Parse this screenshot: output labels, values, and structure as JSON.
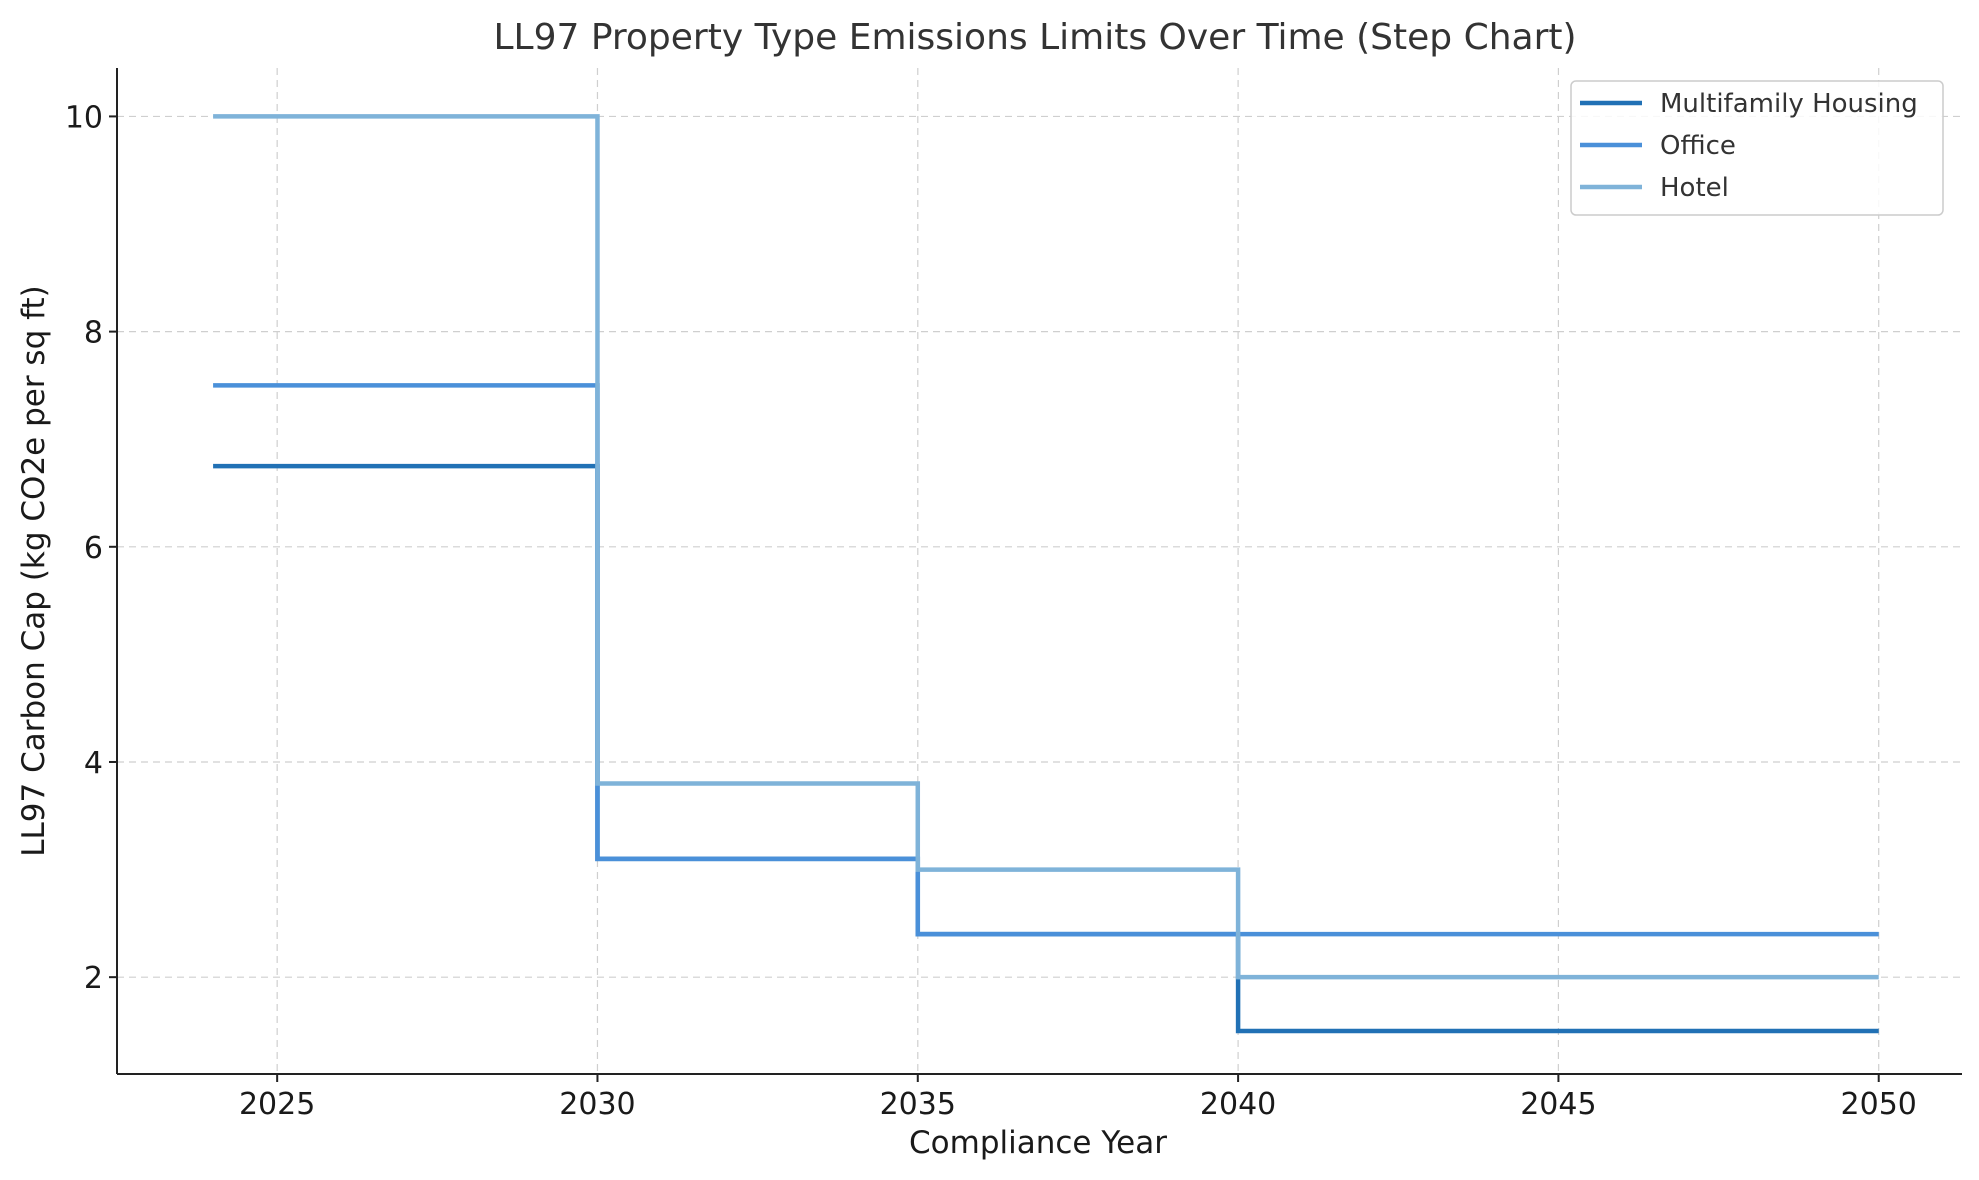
{
  "chart_data": {
    "type": "line",
    "subtype": "step",
    "title": "LL97 Property Type Emissions Limits Over Time (Step Chart)",
    "xlabel": "Compliance Year",
    "ylabel": "LL97 Carbon Cap (kg CO2e per sq ft)",
    "x": [
      2024,
      2030,
      2035,
      2040,
      2050
    ],
    "xlim": [
      2022.5,
      2051.3
    ],
    "ylim": [
      1.1,
      10.45
    ],
    "xticks": [
      2025,
      2030,
      2035,
      2040,
      2045,
      2050
    ],
    "yticks": [
      2,
      4,
      6,
      8,
      10
    ],
    "grid": true,
    "legend_position": "top-right",
    "series": [
      {
        "name": "Multifamily Housing",
        "color": "#2171b5",
        "values": [
          6.75,
          3.1,
          2.4,
          1.5,
          1.5
        ]
      },
      {
        "name": "Office",
        "color": "#4a90d9",
        "values": [
          7.5,
          3.1,
          2.4,
          2.4,
          2.4
        ]
      },
      {
        "name": "Hotel",
        "color": "#7fb3d9",
        "values": [
          10.0,
          3.8,
          3.0,
          2.0,
          2.0
        ]
      }
    ]
  }
}
